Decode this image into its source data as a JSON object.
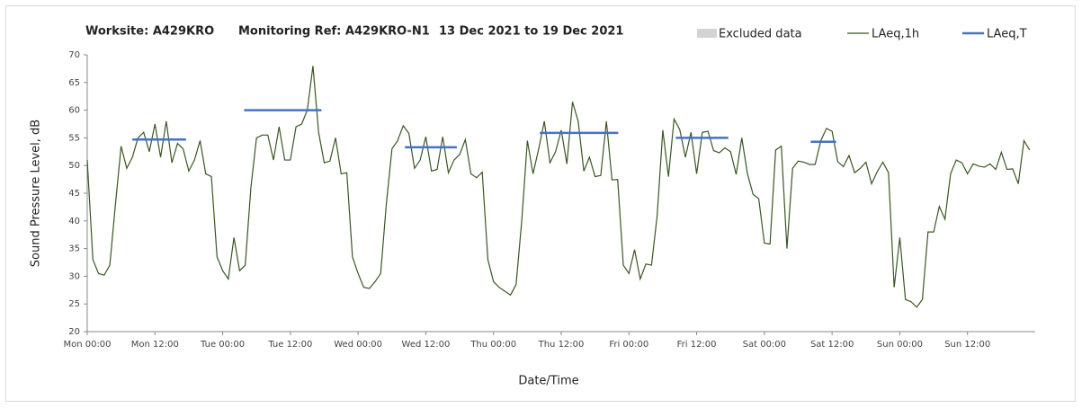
{
  "chart_data": {
    "type": "line",
    "title": [
      "Worksite: A429KRO",
      "Monitoring Ref: A429KRO-N1",
      "13 Dec 2021 to 19 Dec 2021"
    ],
    "x_label": "Date/Time",
    "y_label": "Sound Pressure Level, dB",
    "xlim": [
      0,
      168
    ],
    "xticks": [
      {
        "value": 0,
        "label": "Mon 00:00"
      },
      {
        "value": 12,
        "label": "Mon 12:00"
      },
      {
        "value": 24,
        "label": "Tue 00:00"
      },
      {
        "value": 36,
        "label": "Tue 12:00"
      },
      {
        "value": 48,
        "label": "Wed 00:00"
      },
      {
        "value": 60,
        "label": "Wed 12:00"
      },
      {
        "value": 72,
        "label": "Thu 00:00"
      },
      {
        "value": 84,
        "label": "Thu 12:00"
      },
      {
        "value": 96,
        "label": "Fri 00:00"
      },
      {
        "value": 108,
        "label": "Fri 12:00"
      },
      {
        "value": 120,
        "label": "Sat 00:00"
      },
      {
        "value": 132,
        "label": "Sat 12:00"
      },
      {
        "value": 144,
        "label": "Sun 00:00"
      },
      {
        "value": 156,
        "label": "Sun 12:00"
      }
    ],
    "ylim": [
      20,
      70
    ],
    "yticks": [
      20,
      25,
      30,
      35,
      40,
      45,
      50,
      55,
      60,
      65,
      70
    ],
    "grid": false,
    "legend": [
      {
        "name": "Excluded data",
        "color": "#d3d3d3"
      }
    ],
    "x": [
      0,
      1,
      2,
      3,
      4,
      5,
      6,
      7,
      8,
      9,
      10,
      11,
      12,
      13,
      14,
      15,
      16,
      17,
      18,
      19,
      20,
      21,
      22,
      23,
      24,
      25,
      26,
      27,
      28,
      29,
      30,
      31,
      32,
      33,
      34,
      35,
      36,
      37,
      38,
      39,
      40,
      41,
      42,
      43,
      44,
      45,
      46,
      47,
      48,
      49,
      50,
      51,
      52,
      53,
      54,
      55,
      56,
      57,
      58,
      59,
      60,
      61,
      62,
      63,
      64,
      65,
      66,
      67,
      68,
      69,
      70,
      71,
      72,
      73,
      74,
      75,
      76,
      77,
      78,
      79,
      80,
      81,
      82,
      83,
      84,
      85,
      86,
      87,
      88,
      89,
      90,
      91,
      92,
      93,
      94,
      95,
      96,
      97,
      98,
      99,
      100,
      101,
      102,
      103,
      104,
      105,
      106,
      107,
      108,
      109,
      110,
      111,
      112,
      113,
      114,
      115,
      116,
      117,
      118,
      119,
      120,
      121,
      122,
      123,
      124,
      125,
      126,
      127,
      128,
      129,
      130,
      131,
      132,
      133,
      134,
      135,
      136,
      137,
      138,
      139,
      140,
      141,
      142,
      143,
      144,
      145,
      146,
      147,
      148,
      149,
      150,
      151,
      152,
      153,
      154,
      155,
      156,
      157,
      158,
      159,
      160,
      161,
      162,
      163,
      164,
      165,
      166,
      167
    ],
    "series": [
      {
        "name": "LAeq,1h",
        "color": "#385723",
        "values": [
          51,
          33,
          30.5,
          30.2,
          32,
          43,
          53.5,
          49.5,
          51.5,
          55,
          56,
          52.5,
          57.5,
          51.5,
          58,
          50.5,
          54,
          53,
          49,
          51,
          54.5,
          48.5,
          48,
          33.5,
          31,
          29.5,
          37,
          31,
          32,
          46,
          55,
          55.5,
          55.5,
          51,
          57,
          51,
          51,
          57,
          57.5,
          60,
          68,
          56,
          50.5,
          50.8,
          55,
          48.5,
          48.7,
          33.5,
          30.5,
          28,
          27.8,
          29,
          30.5,
          43,
          53,
          54.5,
          57.2,
          55.8,
          49.5,
          51,
          55.2,
          49,
          49.3,
          55.2,
          48.7,
          51,
          52,
          54.7,
          48.5,
          47.8,
          48.8,
          33,
          29,
          28,
          27.3,
          26.6,
          28.5,
          40,
          54.5,
          48.5,
          53,
          58,
          50.5,
          52.5,
          56.4,
          50.3,
          61.5,
          58,
          49,
          51.5,
          48,
          48.2,
          58,
          47.4,
          47.5,
          32,
          30.5,
          34.8,
          29.5,
          32.2,
          32,
          41,
          56.4,
          48,
          58.4,
          56.5,
          51.5,
          56,
          48.5,
          56,
          56.2,
          52.7,
          52.3,
          53.2,
          52.5,
          48.4,
          55,
          48.5,
          44.8,
          44,
          36,
          35.8,
          52.8,
          53.5,
          35,
          49.5,
          50.8,
          50.6,
          50.2,
          50.2,
          54.5,
          56.7,
          56.2,
          50.7,
          49.8,
          51.8,
          48.7,
          49.5,
          50.6,
          46.7,
          48.9,
          50.6,
          48.7,
          28,
          37,
          25.8,
          25.4,
          24.4,
          25.8,
          38,
          38,
          42.6,
          40.3,
          48.5,
          51,
          50.5,
          48.5,
          50.3,
          49.9,
          49.7,
          50.3,
          49.3,
          52.4,
          49.3,
          49.4,
          46.7,
          54.5,
          52.8
        ]
      },
      {
        "name": "LAeq,T",
        "color": "#4472c4",
        "segments": [
          {
            "x": [
              8,
              17.5
            ],
            "value": 54.7
          },
          {
            "x": [
              27.8,
              41.5
            ],
            "value": 60
          },
          {
            "x": [
              56.3,
              65.5
            ],
            "value": 53.3
          },
          {
            "x": [
              80.2,
              94.1
            ],
            "value": 55.9
          },
          {
            "x": [
              104.3,
              113.6
            ],
            "value": 55
          },
          {
            "x": [
              128.2,
              132.7
            ],
            "value": 54.3
          }
        ]
      }
    ]
  }
}
